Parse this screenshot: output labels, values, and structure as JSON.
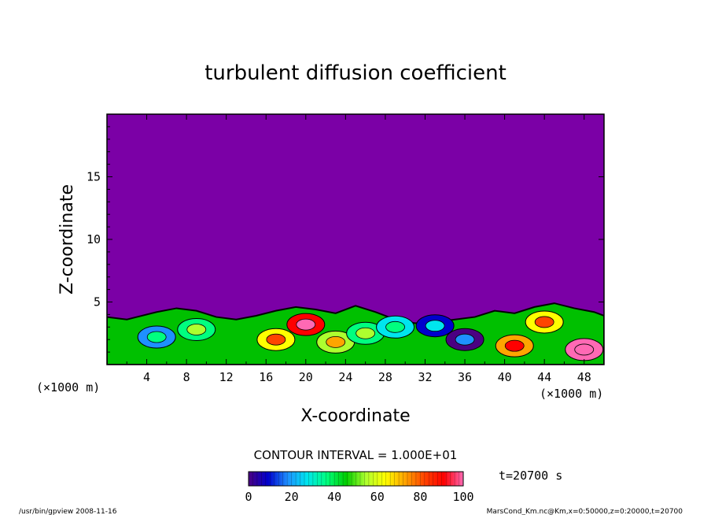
{
  "chart_data": {
    "type": "heatmap",
    "title": "turbulent diffusion coefficient",
    "xlabel": "X-coordinate",
    "ylabel": "Z-coordinate",
    "x_unit_left": "(×1000 m)",
    "x_unit_right": "(×1000 m)",
    "xlim": [
      0,
      50
    ],
    "ylim": [
      0,
      20
    ],
    "x_ticks": [
      "4",
      "8",
      "12",
      "16",
      "20",
      "24",
      "28",
      "32",
      "36",
      "40",
      "44",
      "48"
    ],
    "x_tick_values": [
      4,
      8,
      12,
      16,
      20,
      24,
      28,
      32,
      36,
      40,
      44,
      48
    ],
    "y_ticks": [
      "5",
      "10",
      "15"
    ],
    "y_tick_values": [
      5,
      10,
      15
    ],
    "background_color": "#7b00a6",
    "boundary_layer_top": [
      [
        0,
        3.8
      ],
      [
        2,
        3.6
      ],
      [
        3,
        3.8
      ],
      [
        5,
        4.2
      ],
      [
        7,
        4.5
      ],
      [
        9,
        4.3
      ],
      [
        11,
        3.8
      ],
      [
        13,
        3.6
      ],
      [
        15,
        3.9
      ],
      [
        17,
        4.3
      ],
      [
        19,
        4.6
      ],
      [
        21,
        4.4
      ],
      [
        23,
        4.1
      ],
      [
        25,
        4.7
      ],
      [
        27,
        4.2
      ],
      [
        29,
        3.6
      ],
      [
        31,
        3.3
      ],
      [
        33,
        3.4
      ],
      [
        35,
        3.6
      ],
      [
        37,
        3.8
      ],
      [
        39,
        4.3
      ],
      [
        41,
        4.1
      ],
      [
        43,
        4.6
      ],
      [
        45,
        4.9
      ],
      [
        47,
        4.5
      ],
      [
        49,
        4.2
      ],
      [
        50,
        3.9
      ]
    ],
    "hotspots": [
      {
        "x": 5,
        "z": 2.2,
        "value": 20
      },
      {
        "x": 9,
        "z": 2.8,
        "value": 35
      },
      {
        "x": 17,
        "z": 2.0,
        "value": 60
      },
      {
        "x": 20,
        "z": 3.2,
        "value": 90
      },
      {
        "x": 23,
        "z": 1.8,
        "value": 55
      },
      {
        "x": 26,
        "z": 2.5,
        "value": 40
      },
      {
        "x": 29,
        "z": 3.0,
        "value": 25
      },
      {
        "x": 33,
        "z": 3.1,
        "value": 15
      },
      {
        "x": 36,
        "z": 2.0,
        "value": 5
      },
      {
        "x": 41,
        "z": 1.5,
        "value": 70
      },
      {
        "x": 44,
        "z": 3.4,
        "value": 60
      },
      {
        "x": 48,
        "z": 1.2,
        "value": 95
      }
    ],
    "colorbar": {
      "min": 0,
      "max": 100,
      "labels": [
        "0",
        "20",
        "40",
        "60",
        "80",
        "100"
      ],
      "label_values": [
        0,
        20,
        40,
        60,
        80,
        100
      ],
      "colors": [
        "#4b0082",
        "#0000cd",
        "#1e90ff",
        "#00e5ee",
        "#00ff7f",
        "#00cd00",
        "#adff2f",
        "#ffff00",
        "#ffa500",
        "#ff4500",
        "#ff0000",
        "#ff69b4"
      ]
    },
    "contour_interval": "CONTOUR INTERVAL = 1.000E+01",
    "time_label": "t=20700  s"
  },
  "footer": {
    "left": "/usr/bin/gpview   2008-11-16",
    "right": "MarsCond_Km.nc@Km,x=0:50000,z=0:20000,t=20700"
  }
}
